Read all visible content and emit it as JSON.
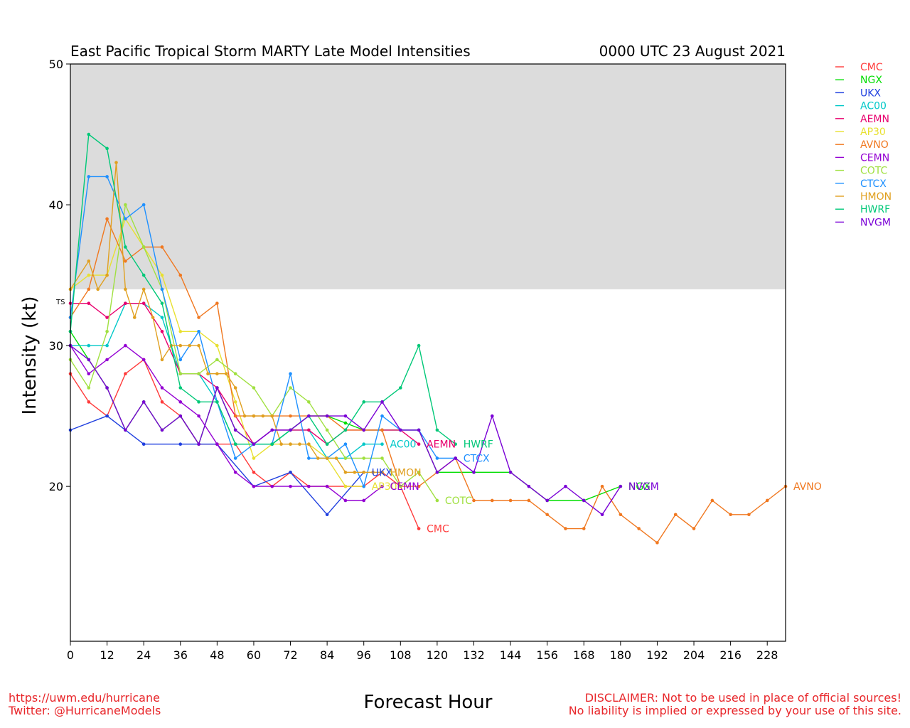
{
  "header": {
    "title": "East Pacific Tropical Storm MARTY Late Model Intensities",
    "datetime": "0000 UTC 23 August 2021"
  },
  "footer": {
    "url": "https://uwm.edu/hurricane",
    "twitter": "Twitter: @HurricaneModels",
    "disclaimer_line1": "DISCLAIMER: Not to be used in place of official sources!",
    "disclaimer_line2": "No liability is implied or expressed by your use of this site."
  },
  "chart_data": {
    "type": "line",
    "title": "East Pacific Tropical Storm MARTY Late Model Intensities",
    "subtitle": "0000 UTC 23 August 2021",
    "xlabel": "Forecast Hour",
    "ylabel": "Intensity (kt)",
    "xlim": [
      0,
      234
    ],
    "ylim": [
      9,
      50
    ],
    "x_ticks": [
      0,
      12,
      24,
      36,
      48,
      60,
      72,
      84,
      96,
      108,
      120,
      132,
      144,
      156,
      168,
      180,
      192,
      204,
      216,
      228
    ],
    "y_ticks": [
      20,
      30,
      40,
      50
    ],
    "shaded_band": {
      "from": 34,
      "to": 50,
      "label": "TS",
      "color": "#dcdcdc"
    },
    "legend_position": "right, outside plot",
    "grid": false,
    "series": [
      {
        "name": "CMC",
        "color": "#ff3b3b",
        "end_label": "CMC",
        "x": [
          0,
          6,
          12,
          18,
          24,
          30,
          36,
          42,
          48,
          54,
          60,
          66,
          72,
          78,
          84,
          90,
          96,
          102,
          108,
          114
        ],
        "y": [
          28,
          26,
          25,
          28,
          29,
          26,
          25,
          23,
          23,
          23,
          21,
          20,
          21,
          20,
          20,
          20,
          20,
          21,
          20,
          17
        ]
      },
      {
        "name": "NGX",
        "color": "#00dd00",
        "end_label": "NGX",
        "x": [
          0,
          6,
          12,
          18,
          24,
          30,
          36,
          42,
          48,
          54,
          60,
          66,
          72,
          78,
          84,
          90,
          96,
          102,
          108,
          114,
          120,
          132,
          144,
          156,
          168,
          180
        ],
        "y": [
          31,
          29,
          27,
          24,
          26,
          24,
          25,
          23,
          27,
          24,
          23,
          23,
          24,
          25,
          25,
          24.5,
          24,
          24,
          24,
          24,
          21,
          21,
          21,
          19,
          19,
          20
        ]
      },
      {
        "name": "UKX",
        "color": "#1f3fdf",
        "end_label": "UKX",
        "x": [
          0,
          12,
          24,
          36,
          48,
          60,
          72,
          84,
          96
        ],
        "y": [
          24,
          25,
          23,
          23,
          23,
          20,
          21,
          18,
          21
        ]
      },
      {
        "name": "AC00",
        "color": "#00c8c8",
        "end_label": "AC00",
        "x": [
          0,
          6,
          12,
          18,
          24,
          30,
          36,
          42,
          48,
          54,
          60,
          66,
          72,
          78,
          84,
          90,
          96,
          102
        ],
        "y": [
          30,
          30,
          30,
          33,
          33,
          32,
          28,
          28,
          26,
          23,
          23,
          23,
          24,
          24,
          22,
          22,
          23,
          23
        ]
      },
      {
        "name": "AEMN",
        "color": "#e8006e",
        "end_label": "AEMN",
        "x": [
          0,
          6,
          12,
          18,
          24,
          30,
          36,
          42,
          48,
          54,
          60,
          66,
          72,
          78,
          84,
          90,
          96,
          102,
          108,
          114
        ],
        "y": [
          33,
          33,
          32,
          33,
          33,
          31,
          28,
          28,
          27,
          25,
          23,
          24,
          24,
          24,
          23,
          24,
          24,
          24,
          24,
          23
        ]
      },
      {
        "name": "AP30",
        "color": "#e8e030",
        "end_label": "AP30",
        "x": [
          0,
          6,
          12,
          18,
          24,
          30,
          36,
          42,
          48,
          54,
          60,
          66,
          72,
          78,
          84,
          90,
          96
        ],
        "y": [
          34,
          35,
          35,
          39,
          37,
          35,
          31,
          31,
          30,
          26,
          22,
          23,
          23,
          23,
          22,
          20,
          20
        ]
      },
      {
        "name": "AVNO",
        "color": "#f07820",
        "end_label": "AVNO",
        "x": [
          0,
          6,
          12,
          18,
          24,
          30,
          36,
          42,
          48,
          54,
          60,
          66,
          72,
          78,
          84,
          90,
          96,
          102,
          108,
          114,
          120,
          126,
          132,
          138,
          144,
          150,
          156,
          162,
          168,
          174,
          180,
          186,
          192,
          198,
          204,
          210,
          216,
          222,
          228,
          234
        ],
        "y": [
          32,
          34,
          39,
          36,
          37,
          37,
          35,
          32,
          33,
          25,
          25,
          25,
          25,
          25,
          25,
          24,
          24,
          24,
          20,
          20,
          21,
          22,
          19,
          19,
          19,
          19,
          18,
          17,
          17,
          20,
          18,
          17,
          16,
          18,
          17,
          19,
          18,
          18,
          19,
          20
        ]
      },
      {
        "name": "CEMN",
        "color": "#9400d3",
        "end_label": "CEMN",
        "x": [
          0,
          6,
          12,
          18,
          24,
          30,
          36,
          42,
          48,
          54,
          60,
          66,
          72,
          78,
          84,
          90,
          96,
          102
        ],
        "y": [
          30,
          28,
          29,
          30,
          29,
          27,
          26,
          25,
          23,
          21,
          20,
          20,
          20,
          20,
          20,
          19,
          19,
          20
        ]
      },
      {
        "name": "COTC",
        "color": "#a0e040",
        "end_label": "COTC",
        "x": [
          0,
          6,
          12,
          18,
          24,
          30,
          36,
          42,
          48,
          54,
          60,
          66,
          72,
          78,
          84,
          90,
          96,
          102,
          108,
          114,
          120
        ],
        "y": [
          29,
          27,
          31,
          40,
          37,
          34,
          28,
          28,
          29,
          28,
          27,
          25,
          27,
          26,
          24,
          22,
          22,
          22,
          20,
          21,
          19
        ]
      },
      {
        "name": "CTCX",
        "color": "#1e90ff",
        "end_label": "CTCX",
        "x": [
          0,
          6,
          12,
          18,
          24,
          30,
          36,
          42,
          48,
          54,
          60,
          66,
          72,
          78,
          84,
          90,
          96,
          102,
          108,
          114,
          120,
          126
        ],
        "y": [
          32,
          42,
          42,
          39,
          40,
          34,
          29,
          31,
          26,
          22,
          23,
          23,
          28,
          22,
          22,
          23,
          20,
          25,
          24,
          24,
          22,
          22
        ]
      },
      {
        "name": "HMON",
        "color": "#e0a020",
        "end_label": "HMON",
        "x": [
          0,
          6,
          9,
          12,
          15,
          18,
          21,
          24,
          27,
          30,
          33,
          36,
          39,
          42,
          45,
          48,
          51,
          54,
          57,
          60,
          63,
          66,
          69,
          72,
          75,
          78,
          81,
          84,
          87,
          90,
          93,
          96,
          99,
          102
        ],
        "y": [
          34,
          36,
          34,
          35,
          43,
          34,
          32,
          34,
          32,
          29,
          30,
          30,
          30,
          30,
          28,
          28,
          28,
          27,
          25,
          25,
          25,
          25,
          23,
          23,
          23,
          23,
          22,
          22,
          22,
          21,
          21,
          21,
          21,
          21
        ]
      },
      {
        "name": "HWRF",
        "color": "#00c878",
        "end_label": "HWRF",
        "x": [
          0,
          6,
          12,
          18,
          24,
          30,
          36,
          42,
          48,
          54,
          60,
          66,
          72,
          78,
          84,
          90,
          96,
          102,
          108,
          114,
          120,
          126
        ],
        "y": [
          31,
          45,
          44,
          37,
          35,
          33,
          27,
          26,
          26,
          23,
          23,
          23,
          24,
          25,
          23,
          24,
          26,
          26,
          27,
          30,
          24,
          23
        ]
      },
      {
        "name": "NVGM",
        "color": "#7a00d6",
        "end_label": "NVGM",
        "x": [
          0,
          6,
          12,
          18,
          24,
          30,
          36,
          42,
          48,
          54,
          60,
          66,
          72,
          78,
          84,
          90,
          96,
          102,
          108,
          114,
          120,
          126,
          132,
          138,
          144,
          150,
          156,
          162,
          168,
          174,
          180
        ],
        "y": [
          30,
          29,
          27,
          24,
          26,
          24,
          25,
          23,
          27,
          24,
          23,
          24,
          24,
          25,
          25,
          25,
          24,
          26,
          24,
          24,
          21,
          22,
          21,
          25,
          21,
          20,
          19,
          20,
          19,
          18,
          20
        ]
      }
    ]
  }
}
